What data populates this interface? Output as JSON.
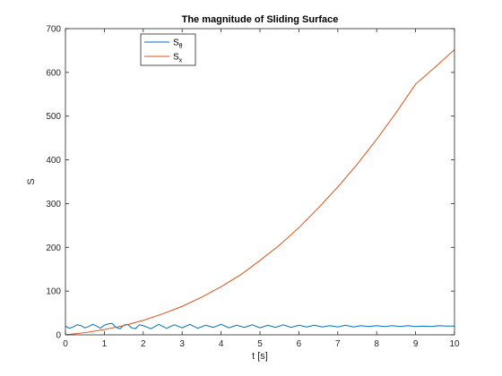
{
  "chart_data": {
    "type": "line",
    "title": "The magnitude of Sliding Surface",
    "xlabel": "t [s]",
    "ylabel": "S",
    "xlim": [
      0,
      10
    ],
    "ylim": [
      0,
      700
    ],
    "xticks": [
      "0",
      "1",
      "2",
      "3",
      "4",
      "5",
      "6",
      "7",
      "8",
      "9",
      "10"
    ],
    "yticks": [
      "0",
      "100",
      "200",
      "300",
      "400",
      "500",
      "600",
      "700"
    ],
    "grid": false,
    "legend_position": "top-left",
    "series": [
      {
        "name": "S",
        "name_subscript": "θ",
        "color": "#0072BD",
        "x": [
          0,
          0.1,
          0.2,
          0.3,
          0.4,
          0.5,
          0.6,
          0.7,
          0.8,
          0.9,
          1.0,
          1.1,
          1.2,
          1.3,
          1.4,
          1.5,
          1.6,
          1.7,
          1.8,
          1.9,
          2.0,
          2.2,
          2.4,
          2.6,
          2.8,
          3.0,
          3.2,
          3.4,
          3.6,
          3.8,
          4.0,
          4.2,
          4.4,
          4.6,
          4.8,
          5.0,
          5.2,
          5.4,
          5.6,
          5.8,
          6.0,
          6.2,
          6.4,
          6.6,
          6.8,
          7.0,
          7.2,
          7.4,
          7.6,
          7.8,
          8.0,
          8.2,
          8.4,
          8.6,
          8.8,
          9.0,
          9.2,
          9.4,
          9.6,
          9.8,
          10.0
        ],
        "values": [
          20,
          15,
          18,
          23,
          21,
          16,
          19,
          24,
          20,
          15,
          22,
          25,
          26,
          17,
          14,
          22,
          24,
          16,
          14,
          23,
          21,
          14,
          24,
          15,
          23,
          16,
          24,
          15,
          22,
          17,
          24,
          16,
          22,
          17,
          23,
          16,
          22,
          17,
          23,
          17,
          22,
          18,
          22,
          18,
          21,
          18,
          22,
          18,
          21,
          19,
          21,
          19,
          21,
          19,
          21,
          19,
          20,
          19,
          21,
          20,
          20
        ]
      },
      {
        "name": "S",
        "name_subscript": "x",
        "color": "#D95319",
        "x": [
          0,
          0.5,
          1,
          1.5,
          2,
          2.5,
          3,
          3.5,
          4,
          4.5,
          5,
          5.5,
          6,
          6.5,
          7,
          7.5,
          8,
          8.5,
          9,
          9.5,
          10
        ],
        "values": [
          0,
          5,
          12,
          21,
          33,
          48,
          65,
          86,
          110,
          137,
          170,
          205,
          245,
          290,
          338,
          390,
          447,
          508,
          573,
          612,
          652
        ]
      }
    ]
  }
}
